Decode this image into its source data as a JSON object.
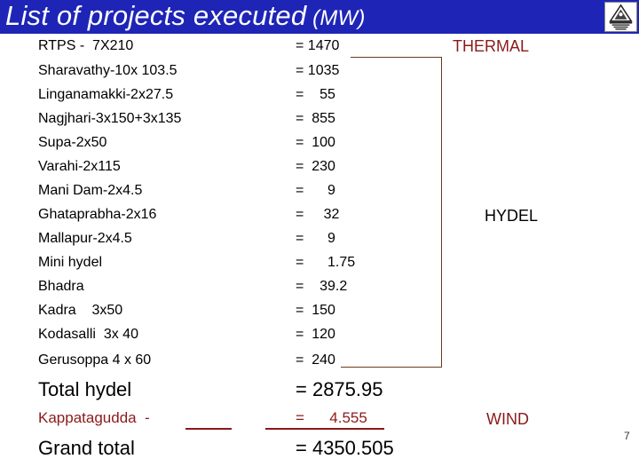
{
  "header": {
    "title": "List of  projects executed",
    "title_unit": " (MW)",
    "logo_icon": "organisation-emblem-icon",
    "bar_color": "#1e25b6"
  },
  "thermal": {
    "label": "RTPS -  7X210",
    "value": "= 1470",
    "group": "THERMAL"
  },
  "hydel": {
    "group": "HYDEL",
    "rows": [
      {
        "label": "Sharavathy-10x 103.5",
        "value": "= 1035"
      },
      {
        "label": "Linganamakki-2x27.5",
        "value": "=    55"
      },
      {
        "label": "Nagjhari-3x150+3x135",
        "value": "=  855"
      },
      {
        "label": "Supa-2x50",
        "value": "=  100"
      },
      {
        "label": "Varahi-2x115",
        "value": "=  230"
      },
      {
        "label": "Mani Dam-2x4.5",
        "value": "=      9"
      },
      {
        "label": "Ghataprabha-2x16",
        "value": "=     32"
      },
      {
        "label": "Mallapur-2x4.5",
        "value": "=      9"
      },
      {
        "label": "Mini hydel",
        "value": "=      1.75"
      },
      {
        "label": "Bhadra",
        "value": "=    39.2"
      },
      {
        "label": "Kadra    3x50",
        "value": "=  150"
      },
      {
        "label": "Kodasalli  3x 40",
        "value": "=  120"
      },
      {
        "label": "Gerusoppa 4 x 60",
        "value": "=  240"
      }
    ]
  },
  "total_hydel": {
    "label": "Total hydel",
    "value": "= 2875.95"
  },
  "wind": {
    "label": "Kappatagudda  -",
    "value": "=      4.555",
    "group": "WIND",
    "color": "#8b1a1a"
  },
  "grand_total": {
    "label": "Grand total",
    "value": "= 4350.505"
  },
  "page_number": "7"
}
